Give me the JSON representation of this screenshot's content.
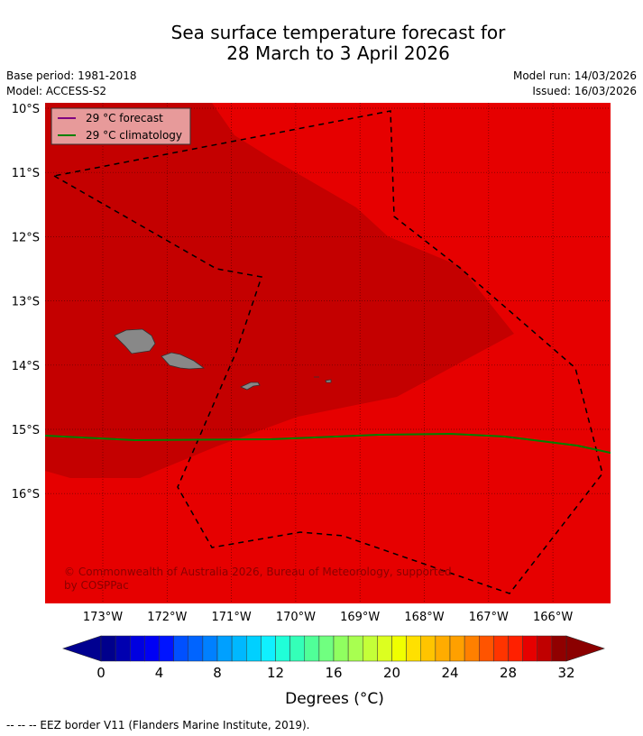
{
  "title_line1": "Sea surface temperature forecast for",
  "title_line2": "28 March to 3 April 2026",
  "base_period": "Base period: 1981-2018",
  "model": "Model: ACCESS-S2",
  "model_run": "Model run: 14/03/2026",
  "issued": "Issued: 16/03/2026",
  "legend": {
    "forecast": "29 °C  forecast",
    "climatology": "29 °C  climatology",
    "forecast_color": "#800080",
    "climatology_color": "#008000"
  },
  "lat_labels": [
    "10°S",
    "11°S",
    "12°S",
    "13°S",
    "14°S",
    "15°S",
    "16°S"
  ],
  "lon_labels": [
    "173°W",
    "172°W",
    "171°W",
    "170°W",
    "169°W",
    "168°W",
    "167°W",
    "166°W"
  ],
  "copyright": [
    "© Commonwealth of Australia 2026, Bureau of Meteorology, supported",
    "by COSPPac"
  ],
  "colorbar": {
    "label": "Degrees (°C)",
    "ticks": [
      "0",
      "4",
      "8",
      "12",
      "16",
      "20",
      "24",
      "28",
      "32"
    ],
    "min": 0,
    "max": 32,
    "under_color": "#000090",
    "over_color": "#8b0000",
    "colors": [
      "#00008c",
      "#0000b0",
      "#0000e0",
      "#0000f4",
      "#0014ff",
      "#0050ff",
      "#0064ff",
      "#0080ff",
      "#00a0ff",
      "#00b8ff",
      "#00d0ff",
      "#10f0ff",
      "#20ffd8",
      "#34ffb8",
      "#50ff98",
      "#70ff80",
      "#90ff60",
      "#a8ff50",
      "#c4ff38",
      "#dcff20",
      "#f0ff00",
      "#ffe000",
      "#ffc400",
      "#ffac00",
      "#ffa000",
      "#ff8000",
      "#ff5400",
      "#ff3400",
      "#ff2000",
      "#e60000",
      "#c00000",
      "#900000"
    ]
  },
  "field_colors": {
    "base": "#e60000",
    "warm": "#c40000"
  },
  "footer": "--  --  -- EEZ border V11 (Flanders Marine Institute, 2019)."
}
